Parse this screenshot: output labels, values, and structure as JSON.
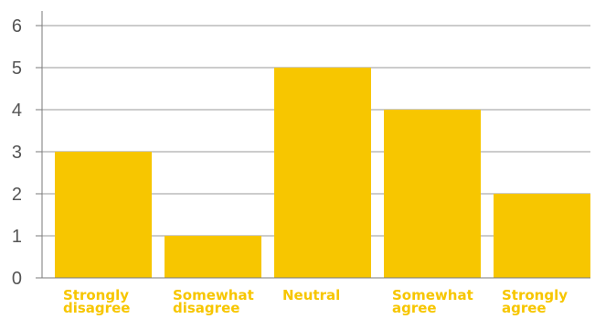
{
  "colors": {
    "bar": "#f7c600",
    "grid": "#9a9a9a",
    "axis": "#7a7a7a",
    "tick_text": "#555555",
    "category_text": "#f7c600"
  },
  "chart_data": {
    "type": "bar",
    "categories": [
      [
        "Strongly",
        "disagree"
      ],
      [
        "Somewhat",
        "disagree"
      ],
      [
        "Neutral"
      ],
      [
        "Somewhat",
        "agree"
      ],
      [
        "Strongly",
        "agree"
      ]
    ],
    "values": [
      3,
      1,
      5,
      4,
      2
    ],
    "yticks": [
      "0",
      "1",
      "2",
      "3",
      "4",
      "5",
      "6"
    ],
    "ylim": [
      0,
      6
    ],
    "grid": true,
    "legend": "none"
  }
}
